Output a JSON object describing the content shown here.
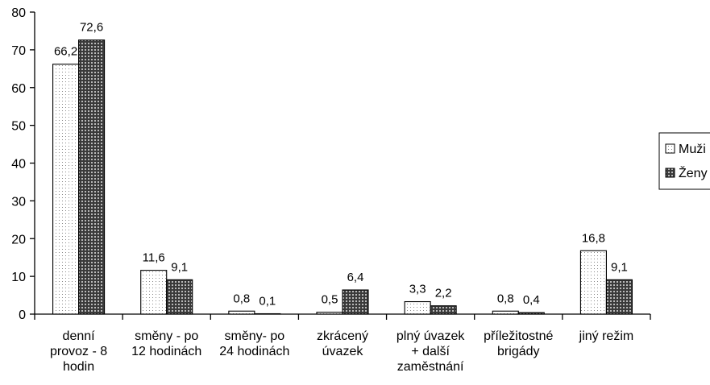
{
  "chart_data": {
    "type": "bar",
    "categories": [
      [
        "denní",
        "provoz - 8",
        "hodin"
      ],
      [
        "směny - po",
        "12 hodinách"
      ],
      [
        "směny- po",
        "24 hodinách"
      ],
      [
        "zkrácený",
        "úvazek"
      ],
      [
        "plný úvazek",
        "+ další",
        "zaměstnání"
      ],
      [
        "příležitostné",
        "brigády"
      ],
      [
        "jiný režim"
      ]
    ],
    "series": [
      {
        "name": "Muži",
        "values": [
          66.2,
          11.6,
          0.8,
          0.5,
          3.3,
          0.8,
          16.8
        ],
        "labels": [
          "66,2",
          "11,6",
          "0,8",
          "0,5",
          "3,3",
          "0,8",
          "16,8"
        ],
        "pattern": "dots"
      },
      {
        "name": "Ženy",
        "values": [
          72.6,
          9.1,
          0.1,
          6.4,
          2.2,
          0.4,
          9.1
        ],
        "labels": [
          "72,6",
          "9,1",
          "0,1",
          "6,4",
          "2,2",
          "0,4",
          "9,1"
        ],
        "pattern": "grid"
      }
    ],
    "ylim": [
      0,
      80
    ],
    "yticks": [
      "0",
      "10",
      "20",
      "30",
      "40",
      "50",
      "60",
      "70",
      "80"
    ],
    "legend_position": "right",
    "grid": false
  }
}
